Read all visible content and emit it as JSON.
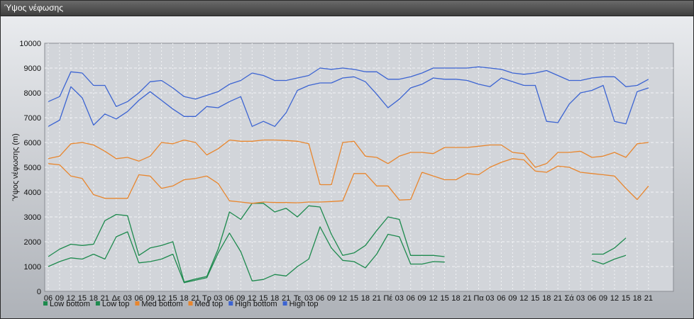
{
  "window": {
    "title": "Ύψος νέφωσης"
  },
  "chart_data": {
    "type": "line",
    "title": "",
    "ylabel": "Ύψος νέφωσης (m)",
    "xlabel": "",
    "ylim": [
      0,
      10000
    ],
    "yticks": [
      0,
      1000,
      2000,
      3000,
      4000,
      5000,
      6000,
      7000,
      8000,
      9000,
      10000
    ],
    "grid": true,
    "legend_position": "bottom-left",
    "x_labels": [
      "06",
      "09",
      "12",
      "15",
      "18",
      "21",
      "Δε",
      "03",
      "06",
      "09",
      "12",
      "15",
      "18",
      "21",
      "Τρ",
      "03",
      "06",
      "09",
      "12",
      "15",
      "18",
      "21",
      "Τε",
      "03",
      "06",
      "09",
      "12",
      "15",
      "18",
      "21",
      "Πέ",
      "03",
      "06",
      "09",
      "12",
      "15",
      "18",
      "21",
      "Πα",
      "03",
      "06",
      "09",
      "12",
      "15",
      "18",
      "21",
      "Σά",
      "03",
      "06",
      "09",
      "12",
      "15",
      "18",
      "21"
    ],
    "series": [
      {
        "name": "Low bottom",
        "color": "#1e8a4e",
        "values": [
          1000,
          1200,
          1350,
          1300,
          1500,
          1300,
          2200,
          2400,
          1150,
          1200,
          1300,
          1500,
          350,
          450,
          550,
          1550,
          2350,
          1600,
          420,
          480,
          680,
          620,
          1000,
          1300,
          2600,
          1750,
          1250,
          1200,
          950,
          1500,
          2300,
          2200,
          1100,
          1100,
          1200,
          1180,
          null,
          null,
          null,
          null,
          null,
          null,
          null,
          null,
          null,
          null,
          null,
          null,
          1250,
          1100,
          1300,
          1450,
          null,
          null
        ]
      },
      {
        "name": "Low top",
        "color": "#1e8a4e",
        "values": [
          1400,
          1700,
          1900,
          1850,
          1900,
          2850,
          3100,
          3050,
          1450,
          1750,
          1850,
          2000,
          380,
          500,
          600,
          1700,
          3200,
          2900,
          3550,
          3550,
          3200,
          3350,
          3000,
          3450,
          3400,
          2300,
          1450,
          1550,
          1850,
          2450,
          3000,
          2900,
          1450,
          1450,
          1450,
          1400,
          null,
          null,
          null,
          null,
          null,
          null,
          null,
          null,
          null,
          null,
          null,
          null,
          1500,
          1500,
          1750,
          2150,
          null,
          null
        ]
      },
      {
        "name": "Med bottom",
        "color": "#e8862e",
        "values": [
          5150,
          5100,
          4650,
          4550,
          3900,
          3750,
          3750,
          3750,
          4700,
          4650,
          4150,
          4250,
          4500,
          4550,
          4650,
          4350,
          3650,
          3600,
          3550,
          3600,
          3580,
          3580,
          3570,
          3600,
          3600,
          3620,
          3650,
          4750,
          4750,
          4250,
          4250,
          3680,
          3700,
          4800,
          4650,
          4500,
          4500,
          4750,
          4700,
          5000,
          5200,
          5350,
          5300,
          4850,
          4800,
          5050,
          5000,
          4800,
          4750,
          4700,
          4650,
          4150,
          3700,
          4250
        ]
      },
      {
        "name": "Med top",
        "color": "#e8862e",
        "values": [
          5350,
          5450,
          5950,
          6000,
          5900,
          5650,
          5350,
          5400,
          5250,
          5450,
          6000,
          5950,
          6100,
          6000,
          5500,
          5750,
          6100,
          6050,
          6050,
          6100,
          6100,
          6080,
          6050,
          5950,
          4300,
          4300,
          6000,
          6050,
          5450,
          5400,
          5150,
          5450,
          5600,
          5600,
          5550,
          5800,
          5800,
          5800,
          5850,
          5900,
          5900,
          5600,
          5550,
          5000,
          5150,
          5600,
          5600,
          5650,
          5400,
          5450,
          5600,
          5400,
          5950,
          6000
        ]
      },
      {
        "name": "High bottom",
        "color": "#3c64d2",
        "values": [
          6650,
          6900,
          8250,
          7800,
          6700,
          7150,
          6950,
          7250,
          7700,
          8050,
          7700,
          7350,
          7050,
          7050,
          7450,
          7400,
          7650,
          7850,
          6650,
          6850,
          6650,
          7200,
          8100,
          8300,
          8400,
          8400,
          8600,
          8650,
          8450,
          7950,
          7400,
          7750,
          8200,
          8350,
          8600,
          8550,
          8550,
          8500,
          8350,
          8250,
          8600,
          8450,
          8300,
          8300,
          6850,
          6800,
          7550,
          8000,
          8100,
          8300,
          6850,
          6750,
          8050,
          8200
        ]
      },
      {
        "name": "High top",
        "color": "#3c64d2",
        "values": [
          7650,
          7850,
          8850,
          8800,
          8300,
          8300,
          7450,
          7650,
          8000,
          8450,
          8500,
          8200,
          7850,
          7750,
          7900,
          8050,
          8350,
          8500,
          8800,
          8700,
          8500,
          8500,
          8600,
          8700,
          9000,
          8950,
          9000,
          8950,
          8850,
          8850,
          8550,
          8550,
          8650,
          8800,
          9000,
          9000,
          9000,
          9000,
          9050,
          9000,
          8950,
          8800,
          8750,
          8800,
          8900,
          8700,
          8500,
          8500,
          8600,
          8650,
          8650,
          8250,
          8300,
          8550
        ]
      }
    ]
  }
}
